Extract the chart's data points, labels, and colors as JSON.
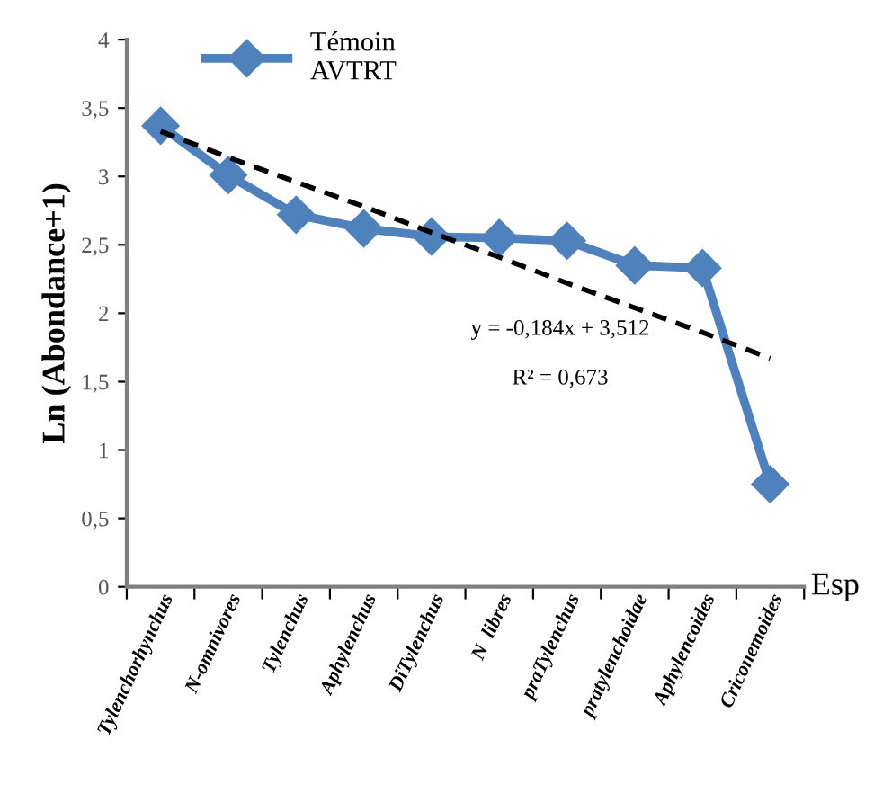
{
  "chart_data": {
    "type": "line",
    "xlabel": "Esp",
    "ylabel": "Ln (Abondance+1)",
    "categories": [
      "Tylenchorhynchus",
      "N-omnivores",
      "Tylenchus",
      "Aphylenchus",
      "DiTylenchus",
      "N  libres",
      "praTylenchus",
      "pratylenchoidae",
      "Aphylencoides",
      "Criconemoides"
    ],
    "series": [
      {
        "name": "Témoin\nAVTRT",
        "color": "#4f81bd",
        "values": [
          3.37,
          3.01,
          2.72,
          2.62,
          2.56,
          2.55,
          2.53,
          2.35,
          2.33,
          0.75
        ],
        "marker": "diamond",
        "line_style": "solid"
      },
      {
        "type": "line",
        "color": "#000000",
        "values": [
          3.33,
          3.14,
          2.96,
          2.78,
          2.59,
          2.41,
          2.22,
          2.04,
          1.86,
          1.67
        ],
        "marker": "none",
        "line_style": "dashed"
      }
    ],
    "ylim": [
      0,
      4
    ],
    "yticks": [
      0,
      {
        "value": 0.5,
        "label": "0,5"
      },
      1,
      {
        "value": 1.5,
        "label": "1,5"
      },
      2,
      {
        "value": 2.5,
        "label": "2,5"
      },
      3,
      {
        "value": 3.5,
        "label": "3,5"
      },
      4
    ],
    "annotations": [
      "y = -0,184x + 3,512",
      "R² = 0,673"
    ],
    "grid": false,
    "legend": "top left"
  }
}
